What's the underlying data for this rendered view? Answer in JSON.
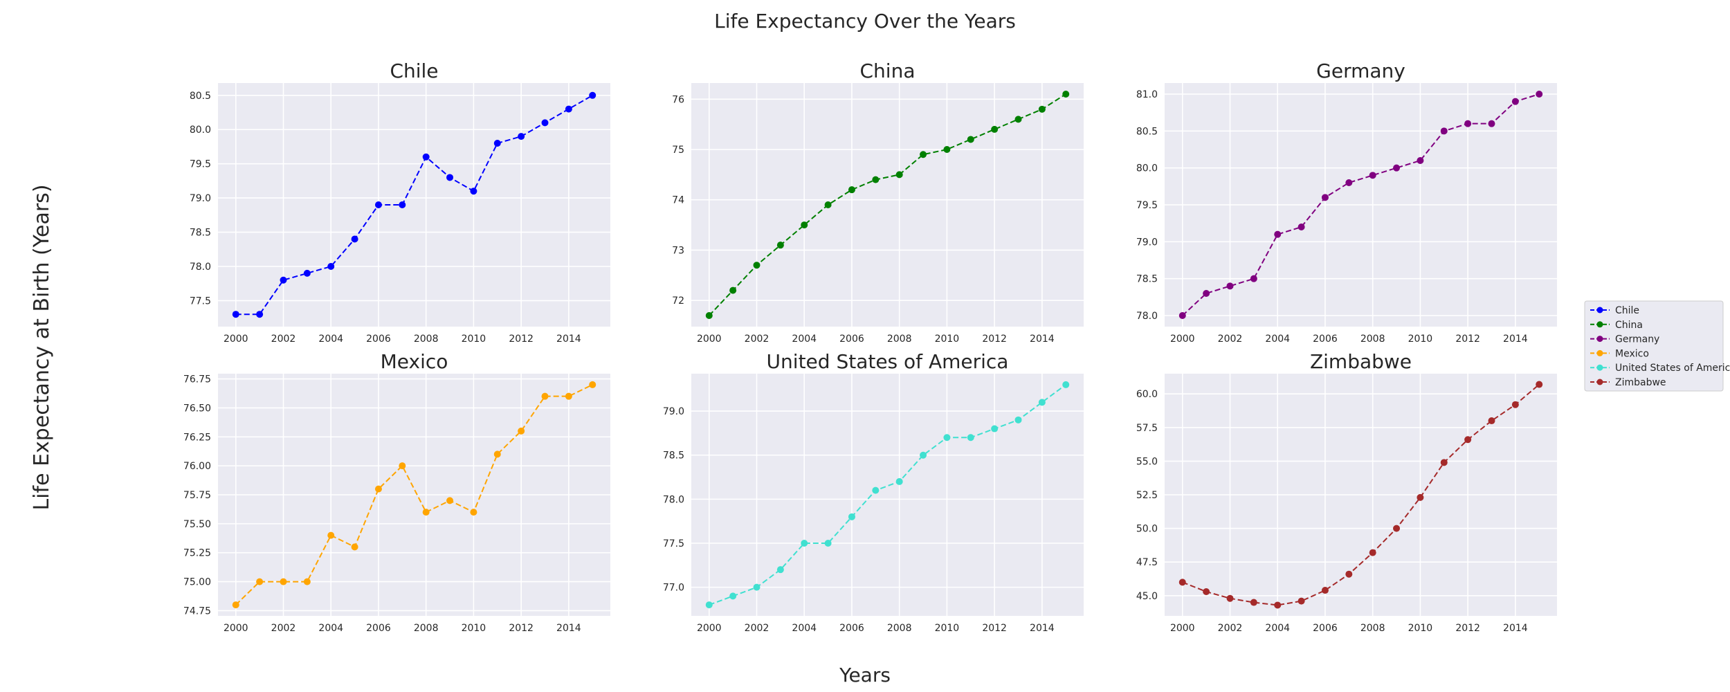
{
  "figure": {
    "title": "Life Expectancy Over the Years",
    "xlabel": "Years",
    "ylabel": "Life Expectancy at Birth (Years)"
  },
  "chart_data": [
    {
      "type": "line",
      "title": "Chile",
      "color": "#0000ff",
      "x": [
        2000,
        2001,
        2002,
        2003,
        2004,
        2005,
        2006,
        2007,
        2008,
        2009,
        2010,
        2011,
        2012,
        2013,
        2014,
        2015
      ],
      "values": [
        77.3,
        77.3,
        77.8,
        77.9,
        78.0,
        78.4,
        78.9,
        78.9,
        79.6,
        79.3,
        79.1,
        79.8,
        79.9,
        80.1,
        80.3,
        80.5
      ],
      "xticks": [
        2000,
        2002,
        2004,
        2006,
        2008,
        2010,
        2012,
        2014
      ],
      "yticks": [
        "77.5",
        "78.0",
        "78.5",
        "79.0",
        "79.5",
        "80.0",
        "80.5"
      ],
      "ylim": [
        77.12,
        80.68
      ],
      "grid": true
    },
    {
      "type": "line",
      "title": "China",
      "color": "#008000",
      "x": [
        2000,
        2001,
        2002,
        2003,
        2004,
        2005,
        2006,
        2007,
        2008,
        2009,
        2010,
        2011,
        2012,
        2013,
        2014,
        2015
      ],
      "values": [
        71.7,
        72.2,
        72.7,
        73.1,
        73.5,
        73.9,
        74.2,
        74.4,
        74.5,
        74.9,
        75.0,
        75.2,
        75.4,
        75.6,
        75.8,
        76.1
      ],
      "xticks": [
        2000,
        2002,
        2004,
        2006,
        2008,
        2010,
        2012,
        2014
      ],
      "yticks": [
        "72",
        "73",
        "74",
        "75",
        "76"
      ],
      "ylim": [
        71.48,
        76.32
      ],
      "grid": true
    },
    {
      "type": "line",
      "title": "Germany",
      "color": "#800080",
      "x": [
        2000,
        2001,
        2002,
        2003,
        2004,
        2005,
        2006,
        2007,
        2008,
        2009,
        2010,
        2011,
        2012,
        2013,
        2014,
        2015
      ],
      "values": [
        78.0,
        78.3,
        78.4,
        78.5,
        79.1,
        79.2,
        79.6,
        79.8,
        79.9,
        80.0,
        80.1,
        80.5,
        80.6,
        80.6,
        80.9,
        81.0
      ],
      "xticks": [
        2000,
        2002,
        2004,
        2006,
        2008,
        2010,
        2012,
        2014
      ],
      "yticks": [
        "78.0",
        "78.5",
        "79.0",
        "79.5",
        "80.0",
        "80.5",
        "81.0"
      ],
      "ylim": [
        77.85,
        81.15
      ],
      "grid": true
    },
    {
      "type": "line",
      "title": "Mexico",
      "color": "#ffa500",
      "x": [
        2000,
        2001,
        2002,
        2003,
        2004,
        2005,
        2006,
        2007,
        2008,
        2009,
        2010,
        2011,
        2012,
        2013,
        2014,
        2015
      ],
      "values": [
        74.8,
        75.0,
        75.0,
        75.0,
        75.4,
        75.3,
        75.8,
        76.0,
        75.6,
        75.7,
        75.6,
        76.1,
        76.3,
        76.6,
        76.6,
        76.7
      ],
      "xticks": [
        2000,
        2002,
        2004,
        2006,
        2008,
        2010,
        2012,
        2014
      ],
      "yticks": [
        "74.75",
        "75.00",
        "75.25",
        "75.50",
        "75.75",
        "76.00",
        "76.25",
        "76.50",
        "76.75"
      ],
      "ylim": [
        74.705,
        76.795
      ],
      "grid": true
    },
    {
      "type": "line",
      "title": "United States of America",
      "color": "#40e0d0",
      "x": [
        2000,
        2001,
        2002,
        2003,
        2004,
        2005,
        2006,
        2007,
        2008,
        2009,
        2010,
        2011,
        2012,
        2013,
        2014,
        2015
      ],
      "values": [
        76.8,
        76.9,
        77.0,
        77.2,
        77.5,
        77.5,
        77.8,
        78.1,
        78.2,
        78.5,
        78.7,
        78.7,
        78.8,
        78.9,
        79.1,
        79.3
      ],
      "xticks": [
        2000,
        2002,
        2004,
        2006,
        2008,
        2010,
        2012,
        2014
      ],
      "yticks": [
        "77.0",
        "77.5",
        "78.0",
        "78.5",
        "79.0"
      ],
      "ylim": [
        76.675,
        79.425
      ],
      "grid": true
    },
    {
      "type": "line",
      "title": "Zimbabwe",
      "color": "#a52a2a",
      "x": [
        2000,
        2001,
        2002,
        2003,
        2004,
        2005,
        2006,
        2007,
        2008,
        2009,
        2010,
        2011,
        2012,
        2013,
        2014,
        2015
      ],
      "values": [
        46.0,
        45.3,
        44.8,
        44.5,
        44.3,
        44.6,
        45.4,
        46.6,
        48.2,
        50.0,
        52.3,
        54.9,
        56.6,
        58.0,
        59.2,
        60.7
      ],
      "xticks": [
        2000,
        2002,
        2004,
        2006,
        2008,
        2010,
        2012,
        2014
      ],
      "yticks": [
        "45.0",
        "47.5",
        "50.0",
        "52.5",
        "55.0",
        "57.5",
        "60.0"
      ],
      "ylim": [
        43.5,
        61.5
      ],
      "grid": true
    }
  ],
  "legend": {
    "placement": "right",
    "items": [
      {
        "label": "Chile",
        "color": "#0000ff"
      },
      {
        "label": "China",
        "color": "#008000"
      },
      {
        "label": "Germany",
        "color": "#800080"
      },
      {
        "label": "Mexico",
        "color": "#ffa500"
      },
      {
        "label": "United States of America",
        "color": "#40e0d0"
      },
      {
        "label": "Zimbabwe",
        "color": "#a52a2a"
      }
    ]
  }
}
